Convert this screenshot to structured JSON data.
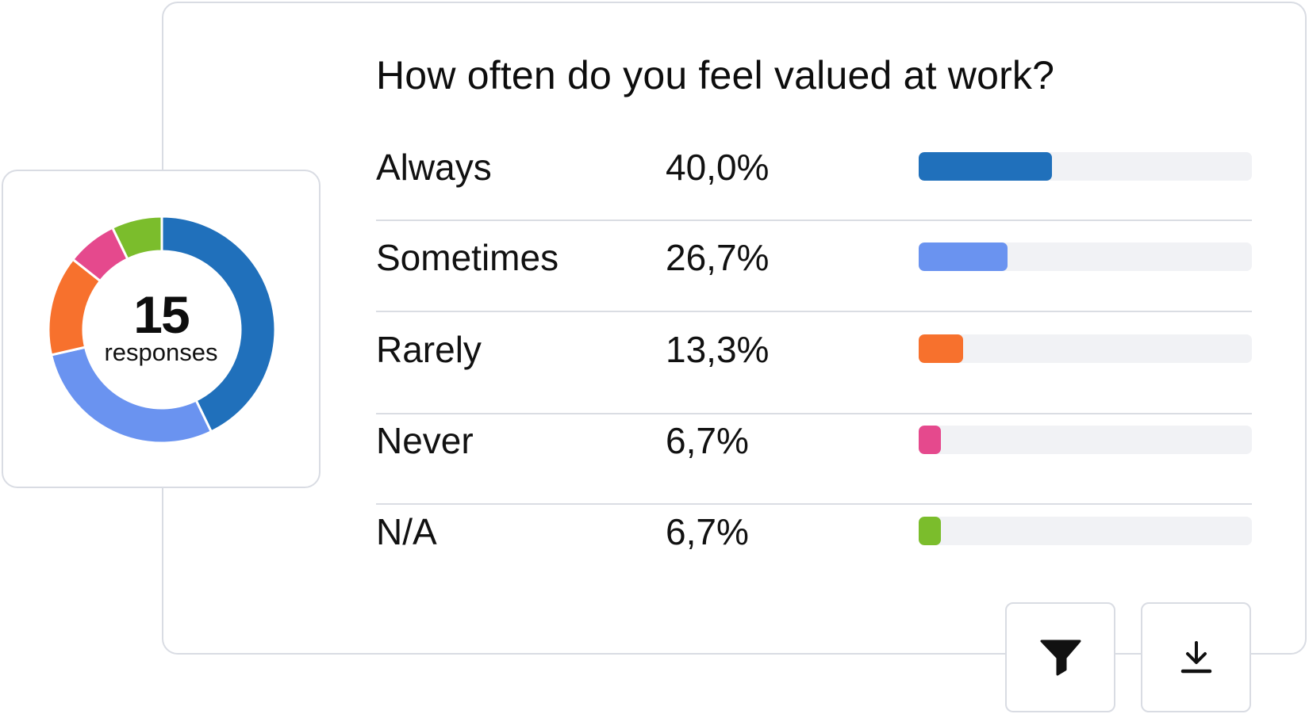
{
  "question": {
    "title": "How often do you feel valued at work?"
  },
  "summary": {
    "count": "15",
    "caption": "responses"
  },
  "colors": {
    "Always": "#2070bb",
    "Sometimes": "#6a93f0",
    "Rarely": "#f7712d",
    "Never": "#e5498d",
    "N/A": "#7bbd2c",
    "track": "#f1f2f5"
  },
  "results": [
    {
      "label": "Always",
      "percent_text": "40,0%",
      "fraction": 0.4,
      "color": "#2070bb"
    },
    {
      "label": "Sometimes",
      "percent_text": "26,7%",
      "fraction": 0.267,
      "color": "#6a93f0"
    },
    {
      "label": "Rarely",
      "percent_text": "13,3%",
      "fraction": 0.133,
      "color": "#f7712d"
    },
    {
      "label": "Never",
      "percent_text": "6,7%",
      "fraction": 0.067,
      "color": "#e5498d"
    },
    {
      "label": "N/A",
      "percent_text": "6,7%",
      "fraction": 0.067,
      "color": "#7bbd2c"
    }
  ],
  "chart_data": {
    "type": "pie",
    "categories": [
      "Always",
      "Sometimes",
      "Rarely",
      "Never",
      "N/A"
    ],
    "values": [
      40.0,
      26.7,
      13.3,
      6.7,
      6.7
    ],
    "colors": [
      "#2070bb",
      "#6a93f0",
      "#f7712d",
      "#e5498d",
      "#7bbd2c"
    ],
    "center_label": "15",
    "center_caption": "responses",
    "title": "",
    "legend": "none"
  },
  "toolbar": {
    "filter_icon": "filter-icon",
    "download_icon": "download-icon"
  }
}
